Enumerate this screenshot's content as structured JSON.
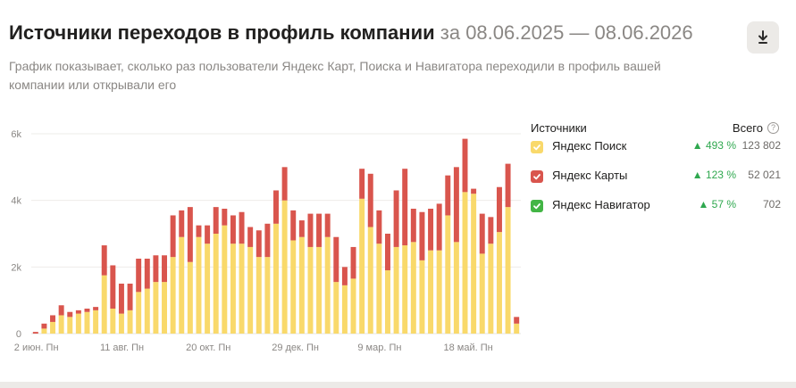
{
  "header": {
    "title": "Источники переходов в профиль компании",
    "range": "за 08.06.2025 — 08.06.2026",
    "subtitle": "График показывает, сколько раз пользователи Яндекс Карт, Поиска и Навигатора переходили в профиль вашей компании или открывали его",
    "download_icon": "download-icon"
  },
  "legend": {
    "heading": "Источники",
    "total_heading": "Всего",
    "help_icon": "?",
    "items": [
      {
        "name": "Яндекс Поиск",
        "delta": "▲ 493 %",
        "total": "123 802",
        "color": "#f9d96b"
      },
      {
        "name": "Яндекс Карты",
        "delta": "▲ 123 %",
        "total": "52 021",
        "color": "#d9554d"
      },
      {
        "name": "Яндекс Навигатор",
        "delta": "▲ 57 %",
        "total": "702",
        "color": "#43b545"
      }
    ]
  },
  "chart_data": {
    "type": "bar",
    "stacked": true,
    "ylim": [
      0,
      6000
    ],
    "yticks": [
      "0",
      "2k",
      "4k",
      "6k"
    ],
    "xticks": [
      "2 июн. Пн",
      "11 авг. Пн",
      "20 окт. Пн",
      "29 дек. Пн",
      "9 мар. Пн",
      "18 май. Пн"
    ],
    "xtick_index": [
      0,
      10,
      20,
      30,
      40,
      50
    ],
    "series": [
      {
        "name": "Яндекс Поиск",
        "color": "#f9d96b",
        "values": [
          0,
          150,
          350,
          550,
          500,
          600,
          650,
          700,
          1750,
          750,
          600,
          700,
          1250,
          1350,
          1550,
          1550,
          2300,
          2900,
          2150,
          2900,
          2700,
          3000,
          3250,
          2700,
          2700,
          2600,
          2300,
          2300,
          3300,
          4000,
          2800,
          2900,
          2600,
          2600,
          2900,
          1550,
          1450,
          1650,
          4050,
          3200,
          2700,
          1900,
          2600,
          2650,
          2750,
          2200,
          2500,
          2500,
          3550,
          2750,
          4250,
          4200,
          2400,
          2700,
          3050,
          3800,
          300
        ]
      },
      {
        "name": "Яндекс Карты",
        "color": "#d9554d",
        "values": [
          50,
          150,
          200,
          300,
          150,
          100,
          100,
          100,
          900,
          1300,
          900,
          800,
          1000,
          900,
          800,
          800,
          1250,
          800,
          1650,
          350,
          550,
          800,
          500,
          850,
          950,
          600,
          800,
          1000,
          1000,
          1000,
          900,
          500,
          1000,
          1000,
          700,
          1350,
          550,
          950,
          900,
          1600,
          1000,
          1100,
          1700,
          2300,
          1000,
          1450,
          1250,
          1400,
          1200,
          2250,
          1600,
          150,
          1200,
          800,
          1350,
          1300,
          200
        ]
      },
      {
        "name": "Яндекс Навигатор",
        "color": "#43b545",
        "values": [
          0,
          0,
          0,
          0,
          0,
          0,
          0,
          0,
          0,
          0,
          0,
          0,
          0,
          0,
          0,
          0,
          0,
          0,
          0,
          0,
          0,
          0,
          0,
          0,
          0,
          0,
          0,
          0,
          0,
          0,
          0,
          0,
          0,
          0,
          0,
          0,
          0,
          0,
          0,
          0,
          0,
          0,
          0,
          0,
          0,
          0,
          0,
          0,
          0,
          0,
          0,
          0,
          0,
          0,
          0,
          0,
          0
        ]
      }
    ]
  }
}
